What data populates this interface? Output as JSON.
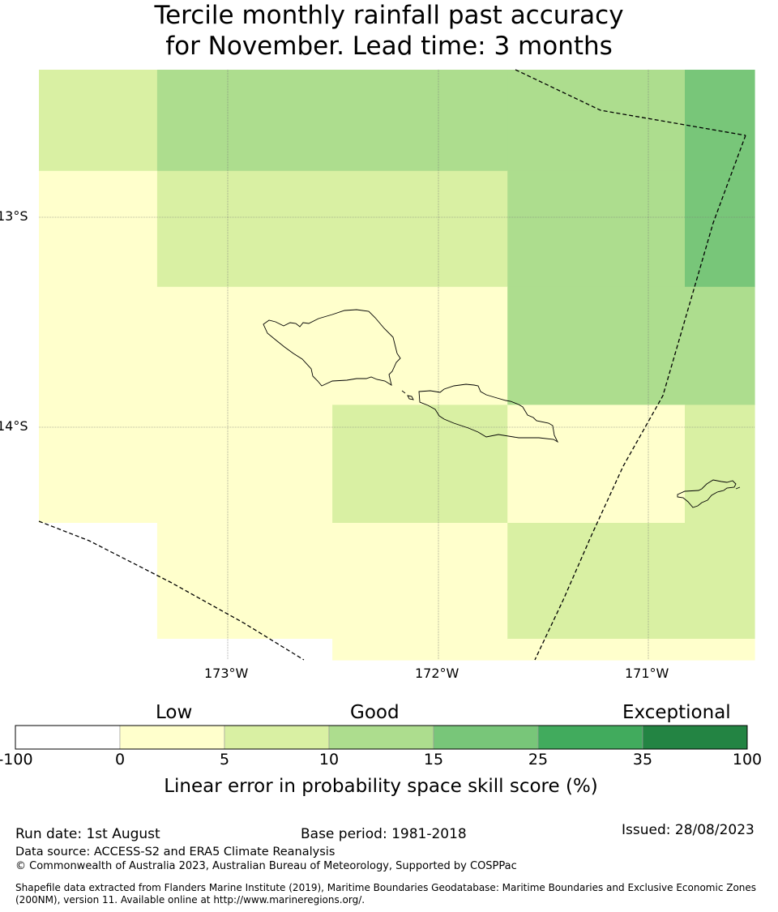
{
  "title_line1": "Tercile monthly rainfall past accuracy",
  "title_line2": "for November. Lead time: 3 months",
  "axes": {
    "lat_labels": [
      "13°S",
      "14°S"
    ],
    "lon_labels": [
      "173°W",
      "172°W",
      "171°W"
    ]
  },
  "map": {
    "lon_range": [
      -173.89,
      -170.5
    ],
    "lat_range": [
      -12.3,
      -15.1
    ],
    "cells": [
      {
        "lon0": -173.89,
        "lon1": -173.33,
        "lat0": -12.3,
        "lat1": -12.78,
        "skill_class": 2
      },
      {
        "lon0": -173.33,
        "lon1": -171.67,
        "lat0": -12.3,
        "lat1": -12.78,
        "skill_class": 3
      },
      {
        "lon0": -171.67,
        "lon1": -170.83,
        "lat0": -12.3,
        "lat1": -12.78,
        "skill_class": 3
      },
      {
        "lon0": -170.83,
        "lon1": -170.5,
        "lat0": -12.3,
        "lat1": -12.78,
        "skill_class": 4
      },
      {
        "lon0": -173.89,
        "lon1": -173.33,
        "lat0": -12.78,
        "lat1": -13.33,
        "skill_class": 1
      },
      {
        "lon0": -173.33,
        "lon1": -171.67,
        "lat0": -12.78,
        "lat1": -13.33,
        "skill_class": 2
      },
      {
        "lon0": -171.67,
        "lon1": -170.83,
        "lat0": -12.78,
        "lat1": -13.33,
        "skill_class": 3
      },
      {
        "lon0": -170.83,
        "lon1": -170.5,
        "lat0": -12.78,
        "lat1": -13.33,
        "skill_class": 4
      },
      {
        "lon0": -173.89,
        "lon1": -171.67,
        "lat0": -13.33,
        "lat1": -13.89,
        "skill_class": 1
      },
      {
        "lon0": -171.67,
        "lon1": -170.5,
        "lat0": -13.33,
        "lat1": -13.89,
        "skill_class": 3
      },
      {
        "lon0": -173.89,
        "lon1": -172.5,
        "lat0": -13.89,
        "lat1": -14.45,
        "skill_class": 1
      },
      {
        "lon0": -172.5,
        "lon1": -171.67,
        "lat0": -13.89,
        "lat1": -14.45,
        "skill_class": 2
      },
      {
        "lon0": -171.67,
        "lon1": -170.83,
        "lat0": -13.89,
        "lat1": -14.45,
        "skill_class": 1
      },
      {
        "lon0": -170.83,
        "lon1": -170.5,
        "lat0": -13.89,
        "lat1": -14.45,
        "skill_class": 2
      },
      {
        "lon0": -173.89,
        "lon1": -173.33,
        "lat0": -14.45,
        "lat1": -15.1,
        "skill_class": 0
      },
      {
        "lon0": -173.33,
        "lon1": -172.5,
        "lat0": -14.45,
        "lat1": -15.0,
        "skill_class": 1
      },
      {
        "lon0": -173.33,
        "lon1": -172.5,
        "lat0": -15.0,
        "lat1": -15.1,
        "skill_class": 0
      },
      {
        "lon0": -172.5,
        "lon1": -171.67,
        "lat0": -14.45,
        "lat1": -15.1,
        "skill_class": 1
      },
      {
        "lon0": -171.67,
        "lon1": -170.5,
        "lat0": -14.45,
        "lat1": -15.0,
        "skill_class": 2
      },
      {
        "lon0": -171.67,
        "lon1": -170.5,
        "lat0": -15.0,
        "lat1": -15.1,
        "skill_class": 1
      }
    ]
  },
  "colorbar": {
    "categories": [
      "Low",
      "Good",
      "Exceptional"
    ],
    "boundaries": [
      "-100",
      "0",
      "5",
      "10",
      "15",
      "25",
      "35",
      "100"
    ],
    "colors": [
      "#ffffff",
      "#ffffcc",
      "#d9f0a3",
      "#addd8e",
      "#78c679",
      "#41ab5d",
      "#238443"
    ],
    "label": "Linear error in probability space skill score (%)"
  },
  "footer": {
    "run_date": "Run date: 1st August",
    "base_period": "Base period: 1981-2018",
    "issued": "Issued: 28/08/2023",
    "data_source": "Data source: ACCESS-S2 and ERA5 Climate Reanalysis",
    "copyright": "© Commonwealth of Australia 2023, Australian Bureau of Meteorology, Supported by COSPPac",
    "shapefile_line1": "Shapefile data extracted from Flanders Marine Institute (2019), Maritime Boundaries Geodatabase: Maritime Boundaries and Exclusive Economic Zones",
    "shapefile_line2": "(200NM), version 11. Available online at http://www.marineregions.org/."
  }
}
